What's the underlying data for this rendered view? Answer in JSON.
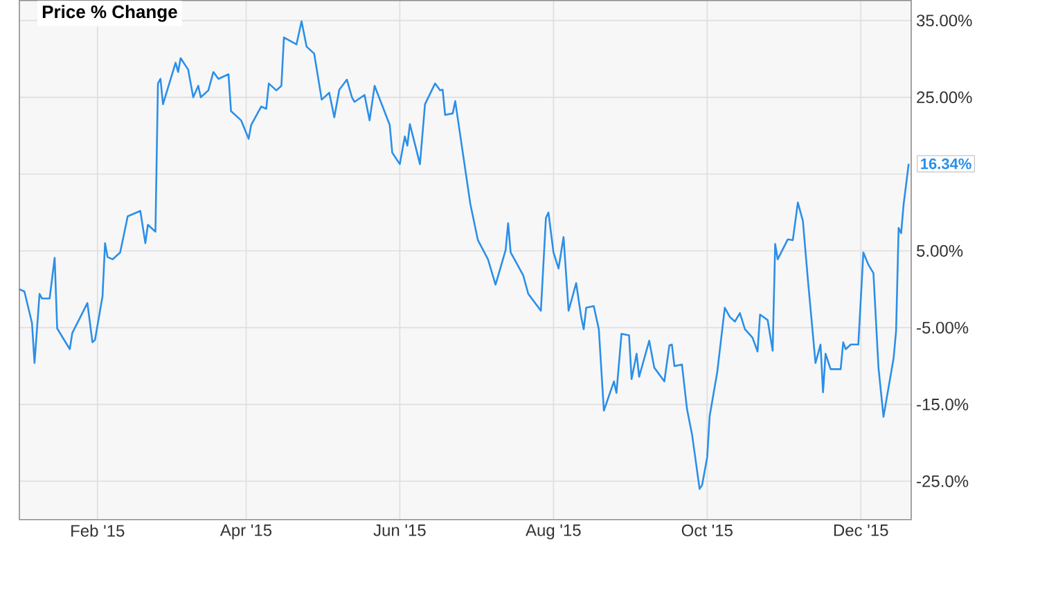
{
  "chart_data": {
    "type": "line",
    "title": "Price % Change",
    "x": [
      "2015-01-01",
      "2015-01-03",
      "2015-01-06",
      "2015-01-07",
      "2015-01-09",
      "2015-01-10",
      "2015-01-13",
      "2015-01-15",
      "2015-01-16",
      "2015-01-21",
      "2015-01-22",
      "2015-01-28",
      "2015-01-30",
      "2015-01-31",
      "2015-02-03",
      "2015-02-04",
      "2015-02-05",
      "2015-02-07",
      "2015-02-10",
      "2015-02-13",
      "2015-02-18",
      "2015-02-20",
      "2015-02-21",
      "2015-02-24",
      "2015-02-25",
      "2015-02-26",
      "2015-02-27",
      "2015-03-04",
      "2015-03-05",
      "2015-03-06",
      "2015-03-09",
      "2015-03-11",
      "2015-03-13",
      "2015-03-14",
      "2015-03-17",
      "2015-03-19",
      "2015-03-21",
      "2015-03-25",
      "2015-03-26",
      "2015-03-30",
      "2015-04-02",
      "2015-04-03",
      "2015-04-07",
      "2015-04-09",
      "2015-04-10",
      "2015-04-13",
      "2015-04-15",
      "2015-04-16",
      "2015-04-21",
      "2015-04-23",
      "2015-04-25",
      "2015-04-28",
      "2015-05-01",
      "2015-05-04",
      "2015-05-06",
      "2015-05-08",
      "2015-05-11",
      "2015-05-13",
      "2015-05-14",
      "2015-05-18",
      "2015-05-20",
      "2015-05-22",
      "2015-05-28",
      "2015-05-29",
      "2015-06-01",
      "2015-06-03",
      "2015-06-04",
      "2015-06-05",
      "2015-06-09",
      "2015-06-11",
      "2015-06-15",
      "2015-06-17",
      "2015-06-18",
      "2015-06-19",
      "2015-06-22",
      "2015-06-23",
      "2015-06-29",
      "2015-07-02",
      "2015-07-06",
      "2015-07-09",
      "2015-07-13",
      "2015-07-14",
      "2015-07-15",
      "2015-07-20",
      "2015-07-22",
      "2015-07-27",
      "2015-07-29",
      "2015-07-30",
      "2015-08-01",
      "2015-08-03",
      "2015-08-05",
      "2015-08-07",
      "2015-08-10",
      "2015-08-12",
      "2015-08-13",
      "2015-08-14",
      "2015-08-17",
      "2015-08-19",
      "2015-08-21",
      "2015-08-25",
      "2015-08-26",
      "2015-08-28",
      "2015-08-31",
      "2015-09-01",
      "2015-09-03",
      "2015-09-04",
      "2015-09-08",
      "2015-09-10",
      "2015-09-14",
      "2015-09-16",
      "2015-09-17",
      "2015-09-18",
      "2015-09-21",
      "2015-09-23",
      "2015-09-25",
      "2015-09-28",
      "2015-09-29",
      "2015-10-01",
      "2015-10-02",
      "2015-10-05",
      "2015-10-08",
      "2015-10-10",
      "2015-10-12",
      "2015-10-14",
      "2015-10-16",
      "2015-10-19",
      "2015-10-21",
      "2015-10-22",
      "2015-10-25",
      "2015-10-27",
      "2015-10-28",
      "2015-10-29",
      "2015-11-02",
      "2015-11-04",
      "2015-11-06",
      "2015-11-08",
      "2015-11-10",
      "2015-11-13",
      "2015-11-15",
      "2015-11-16",
      "2015-11-17",
      "2015-11-19",
      "2015-11-23",
      "2015-11-24",
      "2015-11-25",
      "2015-11-27",
      "2015-11-30",
      "2015-12-02",
      "2015-12-04",
      "2015-12-06",
      "2015-12-08",
      "2015-12-10",
      "2015-12-14",
      "2015-12-15",
      "2015-12-16",
      "2015-12-17",
      "2015-12-18",
      "2015-12-20"
    ],
    "values": [
      0,
      -0.3,
      -4.4,
      -9.6,
      -0.6,
      -1.2,
      -1.2,
      4.1,
      -5.1,
      -7.8,
      -5.7,
      -1.8,
      -6.9,
      -6.6,
      -0.9,
      6.0,
      4.2,
      3.9,
      4.8,
      9.5,
      10.2,
      6.0,
      8.4,
      7.5,
      26.8,
      27.4,
      24.1,
      29.5,
      28.3,
      30.1,
      28.6,
      25.0,
      26.5,
      25.0,
      25.9,
      28.3,
      27.4,
      28.0,
      23.2,
      22.0,
      19.6,
      21.4,
      23.8,
      23.5,
      26.8,
      25.9,
      26.5,
      32.8,
      31.9,
      34.9,
      31.6,
      30.7,
      24.7,
      25.6,
      22.4,
      26.0,
      27.3,
      25.0,
      24.4,
      25.3,
      22.0,
      26.5,
      21.4,
      17.8,
      16.3,
      19.9,
      18.7,
      21.5,
      16.3,
      24.1,
      26.8,
      25.9,
      26.0,
      22.7,
      22.9,
      24.5,
      11.1,
      6.4,
      3.9,
      0.6,
      5.1,
      8.6,
      4.8,
      1.8,
      -0.6,
      -2.8,
      9.3,
      10.0,
      4.8,
      2.7,
      6.8,
      -2.8,
      0.8,
      -3.6,
      -5.2,
      -2.4,
      -2.2,
      -5.2,
      -15.8,
      -12.0,
      -13.5,
      -5.8,
      -6.0,
      -11.7,
      -8.4,
      -11.4,
      -6.7,
      -10.2,
      -12.0,
      -7.3,
      -7.2,
      -10.0,
      -9.8,
      -15.6,
      -18.9,
      -26.0,
      -25.5,
      -21.9,
      -16.5,
      -10.8,
      -2.4,
      -3.6,
      -4.2,
      -3.1,
      -5.2,
      -6.3,
      -8.1,
      -3.3,
      -4.0,
      -8.0,
      5.9,
      3.9,
      6.5,
      6.4,
      11.3,
      8.9,
      1.2,
      -9.6,
      -7.2,
      -13.4,
      -8.4,
      -10.4,
      -10.4,
      -6.9,
      -7.8,
      -7.2,
      -7.2,
      4.8,
      3.2,
      2.1,
      -10.2,
      -16.6,
      -9.0,
      -5.4,
      8.0,
      7.3,
      11.1,
      16.34
    ],
    "value_labels": [
      null,
      null,
      null,
      null,
      null,
      null,
      null,
      null,
      null,
      null,
      null,
      null,
      null,
      null,
      null,
      null,
      null,
      null,
      null,
      null,
      null,
      null,
      null,
      null,
      null,
      null,
      null,
      null,
      null,
      null,
      null,
      null,
      null,
      null,
      null,
      null,
      null,
      null,
      null,
      null,
      null,
      null,
      null,
      null,
      null,
      null,
      null,
      null,
      null,
      null,
      null,
      null,
      null,
      null,
      null,
      null,
      null,
      null,
      null,
      null,
      null,
      null,
      null,
      null,
      null,
      null,
      null,
      null,
      null,
      null,
      null,
      null,
      null,
      null,
      null,
      null,
      null,
      null,
      null,
      null,
      null,
      null,
      null,
      null,
      null,
      null,
      null,
      null,
      null,
      null,
      null,
      null,
      null,
      null,
      null,
      null,
      null,
      null,
      null,
      null,
      null,
      null,
      null,
      null,
      null,
      null,
      null,
      null,
      null,
      null,
      null,
      null,
      null,
      null,
      null,
      null,
      null,
      null,
      null,
      null,
      null,
      null,
      null,
      null,
      null,
      null,
      null,
      null,
      null,
      null,
      null,
      null,
      null,
      null,
      null,
      null,
      null,
      null,
      null,
      null,
      null,
      null,
      null,
      null,
      null,
      null,
      null,
      null,
      null,
      null,
      null,
      null,
      null,
      null,
      null,
      null,
      null,
      "16.34%"
    ],
    "color": "#2b8fe8",
    "xlim": [
      "2015-01-01",
      "2015-12-21"
    ],
    "xticks": [
      {
        "value": "2015-02-01",
        "label": "Feb '15"
      },
      {
        "value": "2015-04-01",
        "label": "Apr '15"
      },
      {
        "value": "2015-06-01",
        "label": "Jun '15"
      },
      {
        "value": "2015-08-01",
        "label": "Aug '15"
      },
      {
        "value": "2015-10-01",
        "label": "Oct '15"
      },
      {
        "value": "2015-12-01",
        "label": "Dec '15"
      }
    ],
    "ylim": [
      -30,
      37.6
    ],
    "yticks": [
      {
        "value": -25,
        "label": "-25.0%"
      },
      {
        "value": -15,
        "label": "-15.0%"
      },
      {
        "value": -5,
        "label": "-5.00%"
      },
      {
        "value": 5,
        "label": "5.00%"
      },
      {
        "value": 15,
        "label": null
      },
      {
        "value": 25,
        "label": "25.00%"
      },
      {
        "value": 35,
        "label": "35.00%"
      }
    ],
    "grid": true
  }
}
